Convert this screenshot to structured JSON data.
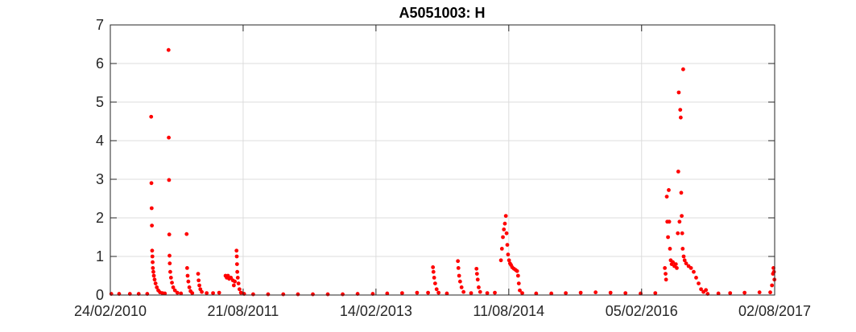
{
  "chart_data": {
    "type": "scatter",
    "title": "A5051003: H",
    "xlabel": "",
    "ylabel": "",
    "grid": true,
    "marker_color": "#ff0000",
    "xlim": [
      "2010-02-24",
      "2017-08-02"
    ],
    "ylim": [
      0,
      7
    ],
    "x_ticks": [
      "24/02/2010",
      "21/08/2011",
      "14/02/2013",
      "11/08/2014",
      "05/02/2016",
      "02/08/2017"
    ],
    "x_tick_dates": [
      "2010-02-24",
      "2011-08-21",
      "2013-02-14",
      "2014-08-11",
      "2016-02-05",
      "2017-08-02"
    ],
    "y_ticks": [
      0,
      1,
      2,
      3,
      4,
      5,
      6,
      7
    ],
    "series": [
      {
        "points": [
          [
            "2010-02-28",
            0.03
          ],
          [
            "2010-04-01",
            0.03
          ],
          [
            "2010-05-15",
            0.03
          ],
          [
            "2010-06-20",
            0.03
          ],
          [
            "2010-07-25",
            0.03
          ],
          [
            "2010-08-10",
            4.62
          ],
          [
            "2010-08-11",
            2.9
          ],
          [
            "2010-08-12",
            2.25
          ],
          [
            "2010-08-13",
            1.8
          ],
          [
            "2010-08-14",
            1.15
          ],
          [
            "2010-08-15",
            1.0
          ],
          [
            "2010-08-16",
            0.85
          ],
          [
            "2010-08-17",
            0.7
          ],
          [
            "2010-08-19",
            0.6
          ],
          [
            "2010-08-21",
            0.5
          ],
          [
            "2010-08-24",
            0.4
          ],
          [
            "2010-08-28",
            0.3
          ],
          [
            "2010-09-02",
            0.2
          ],
          [
            "2010-09-08",
            0.12
          ],
          [
            "2010-09-15",
            0.07
          ],
          [
            "2010-09-25",
            0.05
          ],
          [
            "2010-10-05",
            0.04
          ],
          [
            "2010-10-20",
            6.35
          ],
          [
            "2010-10-21",
            4.08
          ],
          [
            "2010-10-22",
            2.98
          ],
          [
            "2010-10-23",
            1.57
          ],
          [
            "2010-10-24",
            1.02
          ],
          [
            "2010-10-25",
            0.82
          ],
          [
            "2010-10-27",
            0.6
          ],
          [
            "2010-10-30",
            0.45
          ],
          [
            "2010-11-03",
            0.32
          ],
          [
            "2010-11-08",
            0.2
          ],
          [
            "2010-11-15",
            0.12
          ],
          [
            "2010-11-25",
            0.06
          ],
          [
            "2010-12-10",
            0.04
          ],
          [
            "2011-01-02",
            1.58
          ],
          [
            "2011-01-04",
            0.7
          ],
          [
            "2011-01-06",
            0.5
          ],
          [
            "2011-01-09",
            0.35
          ],
          [
            "2011-01-13",
            0.2
          ],
          [
            "2011-01-18",
            0.1
          ],
          [
            "2011-01-25",
            0.05
          ],
          [
            "2011-02-18",
            0.55
          ],
          [
            "2011-02-20",
            0.38
          ],
          [
            "2011-02-23",
            0.25
          ],
          [
            "2011-02-27",
            0.15
          ],
          [
            "2011-03-05",
            0.08
          ],
          [
            "2011-03-25",
            0.05
          ],
          [
            "2011-04-20",
            0.05
          ],
          [
            "2011-05-15",
            0.06
          ],
          [
            "2011-06-10",
            0.5
          ],
          [
            "2011-06-15",
            0.45
          ],
          [
            "2011-06-20",
            0.5
          ],
          [
            "2011-06-25",
            0.42
          ],
          [
            "2011-07-02",
            0.45
          ],
          [
            "2011-07-10",
            0.38
          ],
          [
            "2011-07-14",
            0.25
          ],
          [
            "2011-07-18",
            0.35
          ],
          [
            "2011-07-25",
            1.15
          ],
          [
            "2011-07-26",
            1.0
          ],
          [
            "2011-07-27",
            0.8
          ],
          [
            "2011-07-28",
            0.6
          ],
          [
            "2011-07-30",
            0.45
          ],
          [
            "2011-08-02",
            0.3
          ],
          [
            "2011-08-06",
            0.15
          ],
          [
            "2011-08-12",
            0.06
          ],
          [
            "2011-08-25",
            0.03
          ],
          [
            "2011-10-01",
            0.02
          ],
          [
            "2011-12-01",
            0.02
          ],
          [
            "2012-02-01",
            0.02
          ],
          [
            "2012-04-01",
            0.02
          ],
          [
            "2012-06-01",
            0.02
          ],
          [
            "2012-08-01",
            0.02
          ],
          [
            "2012-10-01",
            0.02
          ],
          [
            "2012-12-01",
            0.03
          ],
          [
            "2013-02-01",
            0.03
          ],
          [
            "2013-04-01",
            0.04
          ],
          [
            "2013-06-01",
            0.05
          ],
          [
            "2013-08-01",
            0.06
          ],
          [
            "2013-09-15",
            0.06
          ],
          [
            "2013-10-05",
            0.72
          ],
          [
            "2013-10-07",
            0.6
          ],
          [
            "2013-10-10",
            0.45
          ],
          [
            "2013-10-14",
            0.3
          ],
          [
            "2013-10-20",
            0.15
          ],
          [
            "2013-10-28",
            0.06
          ],
          [
            "2013-12-01",
            0.04
          ],
          [
            "2014-01-15",
            0.88
          ],
          [
            "2014-01-17",
            0.7
          ],
          [
            "2014-01-20",
            0.5
          ],
          [
            "2014-01-24",
            0.35
          ],
          [
            "2014-01-30",
            0.2
          ],
          [
            "2014-02-07",
            0.08
          ],
          [
            "2014-03-10",
            0.05
          ],
          [
            "2014-04-01",
            0.68
          ],
          [
            "2014-04-03",
            0.55
          ],
          [
            "2014-04-06",
            0.4
          ],
          [
            "2014-04-10",
            0.2
          ],
          [
            "2014-04-16",
            0.08
          ],
          [
            "2014-05-15",
            0.05
          ],
          [
            "2014-06-15",
            0.06
          ],
          [
            "2014-07-10",
            0.9
          ],
          [
            "2014-07-14",
            1.2
          ],
          [
            "2014-07-18",
            1.5
          ],
          [
            "2014-07-22",
            1.7
          ],
          [
            "2014-07-26",
            1.85
          ],
          [
            "2014-07-30",
            2.05
          ],
          [
            "2014-08-02",
            1.6
          ],
          [
            "2014-08-05",
            1.3
          ],
          [
            "2014-08-08",
            1.05
          ],
          [
            "2014-08-12",
            0.9
          ],
          [
            "2014-08-16",
            0.82
          ],
          [
            "2014-08-20",
            0.78
          ],
          [
            "2014-08-25",
            0.72
          ],
          [
            "2014-09-01",
            0.68
          ],
          [
            "2014-09-08",
            0.65
          ],
          [
            "2014-09-14",
            0.62
          ],
          [
            "2014-09-18",
            0.5
          ],
          [
            "2014-09-21",
            0.3
          ],
          [
            "2014-09-25",
            0.12
          ],
          [
            "2014-10-05",
            0.05
          ],
          [
            "2014-12-01",
            0.04
          ],
          [
            "2015-02-01",
            0.04
          ],
          [
            "2015-04-01",
            0.05
          ],
          [
            "2015-06-01",
            0.06
          ],
          [
            "2015-08-01",
            0.07
          ],
          [
            "2015-10-01",
            0.06
          ],
          [
            "2015-12-01",
            0.05
          ],
          [
            "2016-02-01",
            0.04
          ],
          [
            "2016-04-01",
            0.05
          ],
          [
            "2016-05-10",
            0.7
          ],
          [
            "2016-05-13",
            0.55
          ],
          [
            "2016-05-15",
            0.4
          ],
          [
            "2016-05-18",
            2.55
          ],
          [
            "2016-05-20",
            1.9
          ],
          [
            "2016-05-23",
            1.5
          ],
          [
            "2016-05-26",
            2.72
          ],
          [
            "2016-05-28",
            1.9
          ],
          [
            "2016-05-31",
            1.2
          ],
          [
            "2016-06-03",
            0.9
          ],
          [
            "2016-06-07",
            0.8
          ],
          [
            "2016-06-12",
            0.85
          ],
          [
            "2016-06-18",
            0.75
          ],
          [
            "2016-06-24",
            0.8
          ],
          [
            "2016-06-28",
            0.7
          ],
          [
            "2016-07-02",
            1.6
          ],
          [
            "2016-07-04",
            3.2
          ],
          [
            "2016-07-06",
            5.25
          ],
          [
            "2016-07-09",
            1.9
          ],
          [
            "2016-07-12",
            4.8
          ],
          [
            "2016-07-14",
            4.6
          ],
          [
            "2016-07-16",
            2.65
          ],
          [
            "2016-07-18",
            2.05
          ],
          [
            "2016-07-20",
            1.6
          ],
          [
            "2016-07-22",
            1.2
          ],
          [
            "2016-07-24",
            5.85
          ],
          [
            "2016-07-26",
            1.0
          ],
          [
            "2016-07-30",
            0.9
          ],
          [
            "2016-08-05",
            0.82
          ],
          [
            "2016-08-15",
            0.75
          ],
          [
            "2016-08-25",
            0.7
          ],
          [
            "2016-09-05",
            0.6
          ],
          [
            "2016-09-15",
            0.45
          ],
          [
            "2016-09-25",
            0.3
          ],
          [
            "2016-10-05",
            0.15
          ],
          [
            "2016-10-15",
            0.08
          ],
          [
            "2016-10-25",
            0.13
          ],
          [
            "2016-11-01",
            0.03
          ],
          [
            "2016-12-15",
            0.04
          ],
          [
            "2017-02-01",
            0.05
          ],
          [
            "2017-04-01",
            0.06
          ],
          [
            "2017-06-01",
            0.07
          ],
          [
            "2017-07-15",
            0.07
          ],
          [
            "2017-07-22",
            0.25
          ],
          [
            "2017-07-26",
            0.55
          ],
          [
            "2017-07-28",
            0.7
          ],
          [
            "2017-07-30",
            0.6
          ],
          [
            "2017-08-01",
            0.4
          ]
        ]
      }
    ]
  }
}
